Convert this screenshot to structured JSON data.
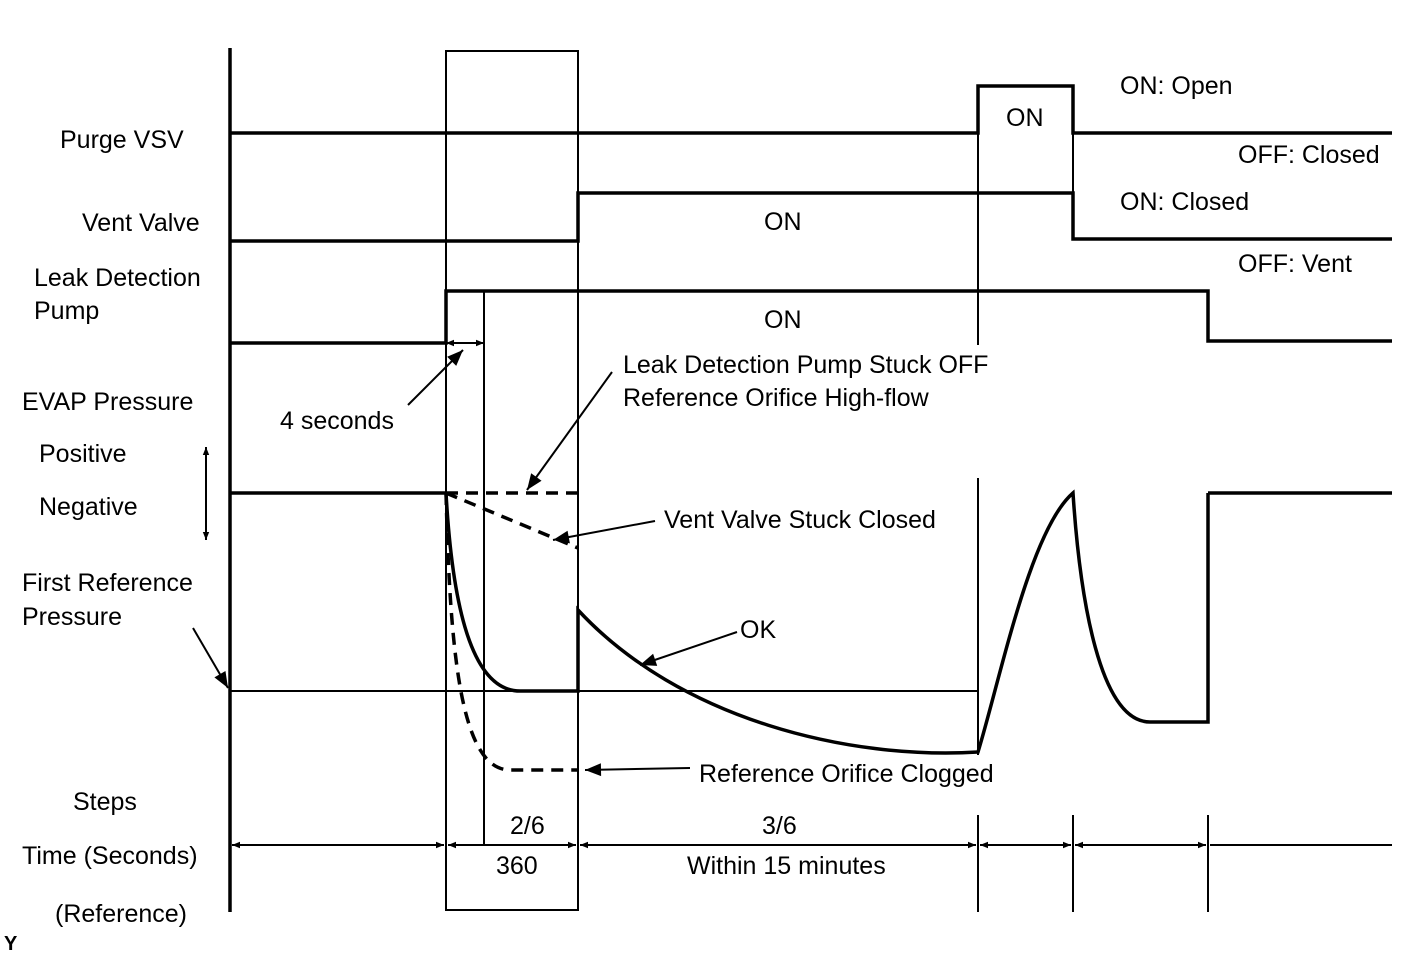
{
  "labels": {
    "purge_vsv": "Purge VSV",
    "vent_valve": "Vent Valve",
    "leak_pump_1": "Leak Detection",
    "leak_pump_2": "Pump",
    "evap_pressure": "EVAP Pressure",
    "positive": "Positive",
    "negative": "Negative",
    "first_ref_1": "First Reference",
    "first_ref_2": "Pressure",
    "steps": "Steps",
    "time": "Time (Seconds)",
    "reference": "(Reference)",
    "figure_code": "Y"
  },
  "states": {
    "purge_on": "ON",
    "vent_on": "ON",
    "pump_on": "ON",
    "purge_on_desc": "ON: Open",
    "purge_off_desc": "OFF: Closed",
    "vent_on_desc": "ON: Closed",
    "vent_off_desc": "OFF: Vent"
  },
  "annotations": {
    "four_seconds": "4 seconds",
    "pump_stuck_1": "Leak Detection Pump Stuck OFF",
    "pump_stuck_2": "Reference Orifice High-flow",
    "vent_stuck": "Vent Valve Stuck Closed",
    "ok": "OK",
    "clogged": "Reference Orifice Clogged"
  },
  "timeline": {
    "step_2": "2/6",
    "step_3": "3/6",
    "time_2": "360",
    "time_3": "Within 15 minutes"
  }
}
